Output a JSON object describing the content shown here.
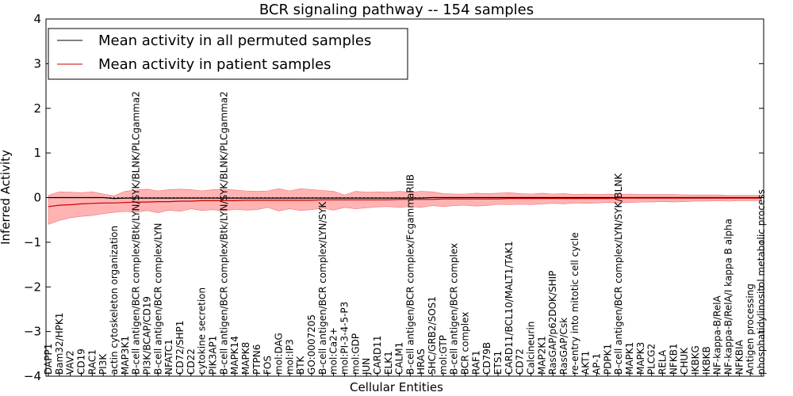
{
  "chart_data": {
    "type": "line",
    "title": "BCR signaling pathway -- 154 samples",
    "xlabel": "Cellular Entities",
    "ylabel": "Inferred Activity",
    "ylim": [
      -4,
      4
    ],
    "yticks": [
      "−4",
      "−3",
      "−2",
      "−1",
      "0",
      "1",
      "2",
      "3",
      "4"
    ],
    "reference_line": 0,
    "legend": {
      "position": "top-left",
      "entries": [
        {
          "label": "Mean activity in all permuted samples",
          "color": "#000000"
        },
        {
          "label": "Mean activity in patient samples",
          "color": "#cc0000"
        }
      ]
    },
    "band_color": "#ff9999",
    "entities": [
      "DAPP1",
      "Bam32/HPK1",
      "VAV2",
      "CD19",
      "RAC1",
      "PI3K",
      "actin cytoskeleton organization",
      "MAP3K1",
      "B-cell antigen/BCR complex/Btk/LYN/SYK/BLNK/PLCgamma2",
      "PI3K/BCAP/CD19",
      "B-cell antigen/BCR complex/LYN",
      "NFATC1",
      "CD72/SHP1",
      "CD22",
      "cytokine secretion",
      "PIK3AP1",
      "B-cell antigen/BCR complex/Btk/LYN/SYK/BLNK/PLCgamma2",
      "MAPK14",
      "MAPK8",
      "PTPN6",
      "FOS",
      "mol:DAG",
      "mol:IP3",
      "BTK",
      "GO:0007205",
      "B-cell antigen/BCR complex/LYN/SYK",
      "mol:Ca2+",
      "mol:PI-3-4-5-P3",
      "mol:GDP",
      "JUN",
      "CARD11",
      "ELK1",
      "CALM1",
      "B-cell antigen/BCR complex/FcgammaRIIB",
      "HRAS",
      "SHC/GRB2/SOS1",
      "mol:GTP",
      "B-cell antigen/BCR complex",
      "BCR complex",
      "RAF1",
      "CD79B",
      "ETS1",
      "CARD11/BCL10/MALT1/TAK1",
      "CD72",
      "Calcineurin",
      "MAP2K1",
      "RasGAP/p62DOK/SHIP",
      "RasGAP/Csk",
      "re-entry into mitotic cell cycle",
      "AKT1",
      "AP-1",
      "PDPK1",
      "B-cell antigen/BCR complex/LYN/SYK/BLNK",
      "MAPK1",
      "MAPK3",
      "PLCG2",
      "RELA",
      "NFKB1",
      "CHUK",
      "IKBKG",
      "IKBKB",
      "NF-kappa-B/RelA",
      "NF-kappa-B/RelA/I kappa B alpha",
      "NFKBIA",
      "Antigen processing",
      "phosphatidylinositol metabolic process"
    ],
    "x": [
      0,
      1,
      2,
      3,
      4,
      5,
      6,
      7,
      8,
      9,
      10,
      11,
      12,
      13,
      14,
      15,
      16,
      17,
      18,
      19,
      20,
      21,
      22,
      23,
      24,
      25,
      26,
      27,
      28,
      29,
      30,
      31,
      32,
      33,
      34,
      35,
      36,
      37,
      38,
      39,
      40,
      41,
      42,
      43,
      44,
      45,
      46,
      47,
      48,
      49,
      50,
      51,
      52,
      53,
      54,
      55,
      56,
      57,
      58,
      59,
      60,
      61,
      62,
      63,
      64,
      65
    ],
    "series": [
      {
        "name": "Mean activity in all permuted samples",
        "color": "#000000",
        "values": [
          0,
          0,
          0,
          0,
          0,
          0,
          -0.02,
          -0.01,
          -0.01,
          -0.01,
          -0.01,
          -0.01,
          -0.01,
          -0.01,
          -0.01,
          -0.01,
          -0.01,
          -0.01,
          -0.01,
          -0.01,
          -0.01,
          -0.01,
          -0.01,
          -0.01,
          -0.01,
          -0.01,
          -0.01,
          -0.01,
          -0.01,
          -0.01,
          -0.01,
          -0.01,
          -0.01,
          -0.01,
          -0.01,
          0,
          0,
          0,
          0,
          0,
          0,
          0,
          0,
          0,
          0,
          0,
          0,
          0,
          0,
          0,
          0,
          0,
          0,
          0,
          0,
          0,
          0,
          0,
          0,
          0,
          0,
          0,
          0,
          0,
          0,
          0
        ]
      },
      {
        "name": "Mean activity in patient samples",
        "color": "#cc0000",
        "values": [
          -0.2,
          -0.17,
          -0.16,
          -0.14,
          -0.13,
          -0.12,
          -0.12,
          -0.11,
          -0.1,
          -0.1,
          -0.09,
          -0.09,
          -0.08,
          -0.08,
          -0.07,
          -0.07,
          -0.07,
          -0.07,
          -0.06,
          -0.06,
          -0.06,
          -0.06,
          -0.06,
          -0.06,
          -0.06,
          -0.05,
          -0.05,
          -0.05,
          -0.05,
          -0.05,
          -0.05,
          -0.05,
          -0.04,
          -0.04,
          -0.04,
          -0.04,
          -0.03,
          -0.03,
          -0.03,
          -0.03,
          -0.03,
          -0.03,
          -0.02,
          -0.02,
          -0.02,
          -0.02,
          -0.02,
          -0.02,
          -0.02,
          -0.02,
          -0.02,
          -0.02,
          -0.01,
          -0.01,
          -0.01,
          -0.01,
          -0.01,
          -0.01,
          -0.01,
          -0.01,
          -0.01,
          -0.01,
          -0.01,
          -0.01,
          -0.01,
          -0.01
        ]
      }
    ],
    "band_upper": [
      0.05,
      0.13,
      0.12,
      0.11,
      0.13,
      0.08,
      0.04,
      0.14,
      0.17,
      0.19,
      0.15,
      0.18,
      0.19,
      0.18,
      0.15,
      0.18,
      0.19,
      0.17,
      0.15,
      0.14,
      0.15,
      0.2,
      0.15,
      0.2,
      0.18,
      0.16,
      0.14,
      0.06,
      0.14,
      0.12,
      0.13,
      0.12,
      0.14,
      0.12,
      0.14,
      0.13,
      0.09,
      0.08,
      0.08,
      0.1,
      0.09,
      0.1,
      0.11,
      0.09,
      0.08,
      0.1,
      0.08,
      0.09,
      0.07,
      0.08,
      0.07,
      0.08,
      0.07,
      0.08,
      0.07,
      0.07,
      0.07,
      0.07,
      0.06,
      0.06,
      0.06,
      0.06,
      0.05,
      0.05,
      0.05,
      0.05
    ],
    "band_lower": [
      -0.6,
      -0.51,
      -0.45,
      -0.42,
      -0.4,
      -0.36,
      -0.33,
      -0.31,
      -0.33,
      -0.29,
      -0.34,
      -0.28,
      -0.31,
      -0.25,
      -0.29,
      -0.27,
      -0.3,
      -0.26,
      -0.28,
      -0.27,
      -0.22,
      -0.3,
      -0.25,
      -0.29,
      -0.27,
      -0.24,
      -0.28,
      -0.22,
      -0.25,
      -0.23,
      -0.21,
      -0.2,
      -0.22,
      -0.2,
      -0.22,
      -0.18,
      -0.2,
      -0.18,
      -0.17,
      -0.19,
      -0.18,
      -0.15,
      -0.16,
      -0.15,
      -0.16,
      -0.14,
      -0.13,
      -0.14,
      -0.12,
      -0.13,
      -0.12,
      -0.11,
      -0.12,
      -0.11,
      -0.1,
      -0.1,
      -0.09,
      -0.1,
      -0.09,
      -0.08,
      -0.08,
      -0.07,
      -0.08,
      -0.07,
      -0.07,
      -0.06
    ]
  }
}
